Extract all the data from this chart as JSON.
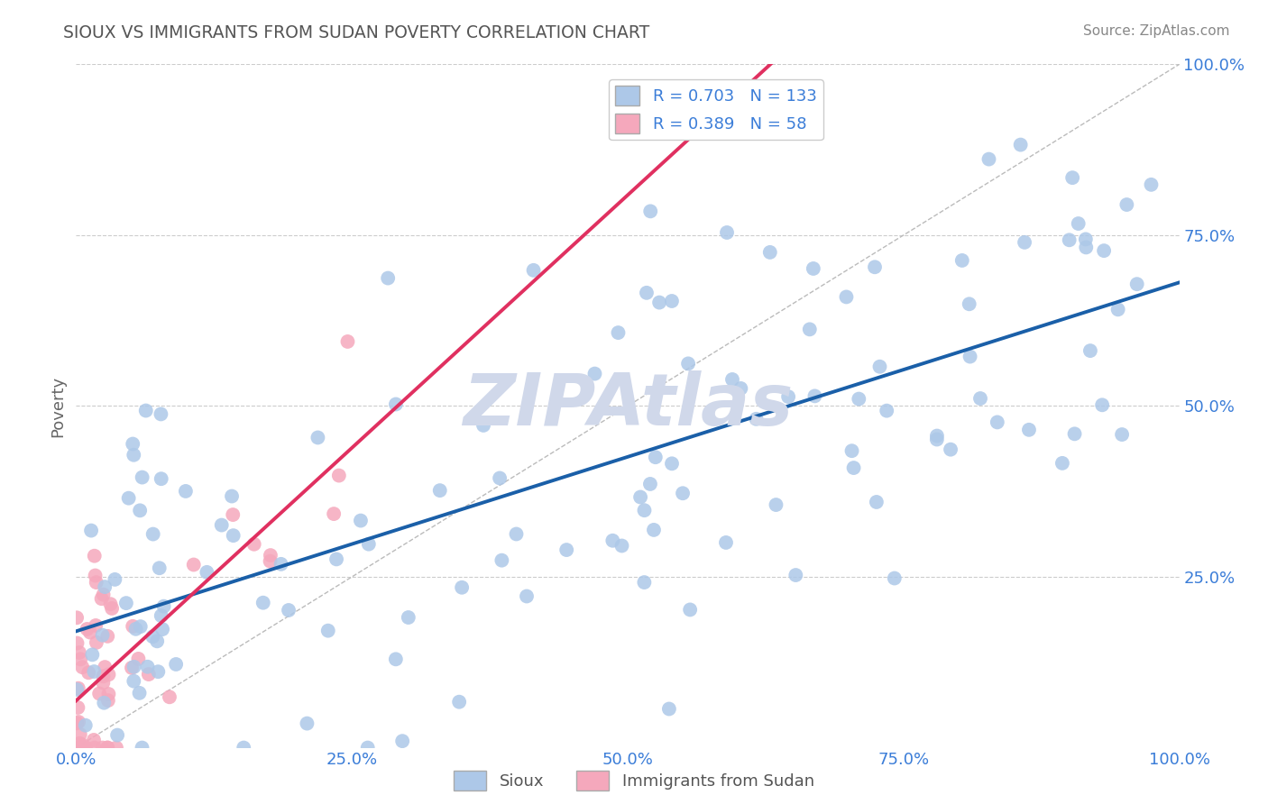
{
  "title": "SIOUX VS IMMIGRANTS FROM SUDAN POVERTY CORRELATION CHART",
  "source": "Source: ZipAtlas.com",
  "ylabel": "Poverty",
  "xlim": [
    0,
    100
  ],
  "ylim": [
    0,
    100
  ],
  "legend_labels": [
    "Sioux",
    "Immigrants from Sudan"
  ],
  "blue_R": 0.703,
  "blue_N": 133,
  "pink_R": 0.389,
  "pink_N": 58,
  "blue_color": "#adc8e8",
  "pink_color": "#f5a8bc",
  "blue_line_color": "#1a5fa8",
  "pink_line_color": "#e03060",
  "title_color": "#555555",
  "label_color": "#3b7dd8",
  "background_color": "#ffffff",
  "grid_color": "#cccccc",
  "watermark": "ZIPAtlas",
  "watermark_color": "#d0d8ea"
}
